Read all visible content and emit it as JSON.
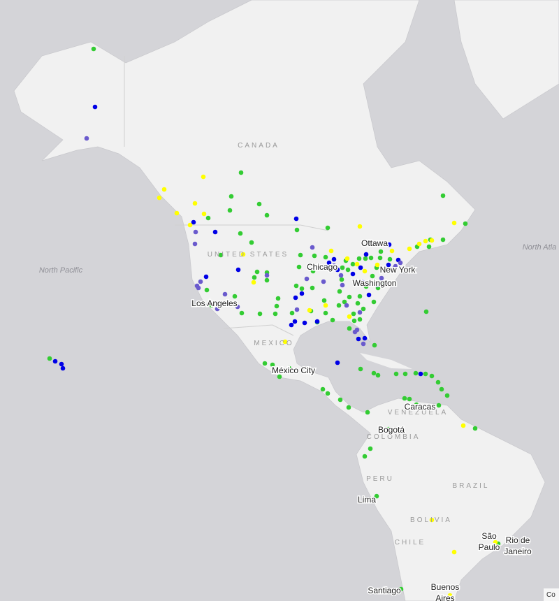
{
  "countries": [
    "CANADA",
    "UNITED STATES",
    "MEXICO",
    "VENEZUELA",
    "COLOMBIA",
    "PERU",
    "BRAZIL",
    "BOLIVIA",
    "CHILE"
  ],
  "oceans": [
    "North Pacific",
    "North Atla"
  ],
  "cities": [
    {
      "lines": [
        "Ottawa"
      ]
    },
    {
      "lines": [
        "Chicago"
      ]
    },
    {
      "lines": [
        "New York"
      ]
    },
    {
      "lines": [
        "Washington"
      ]
    },
    {
      "lines": [
        "Los Angeles"
      ]
    },
    {
      "lines": [
        "México City"
      ]
    },
    {
      "lines": [
        "Caracas"
      ]
    },
    {
      "lines": [
        "Bogotá"
      ]
    },
    {
      "lines": [
        "Lima"
      ]
    },
    {
      "lines": [
        "São",
        "Paulo"
      ]
    },
    {
      "lines": [
        "Rio de",
        "Janeiro"
      ]
    },
    {
      "lines": [
        "Santiago"
      ]
    },
    {
      "lines": [
        "Buenos",
        "Aires"
      ]
    }
  ],
  "attribution": "Co"
}
